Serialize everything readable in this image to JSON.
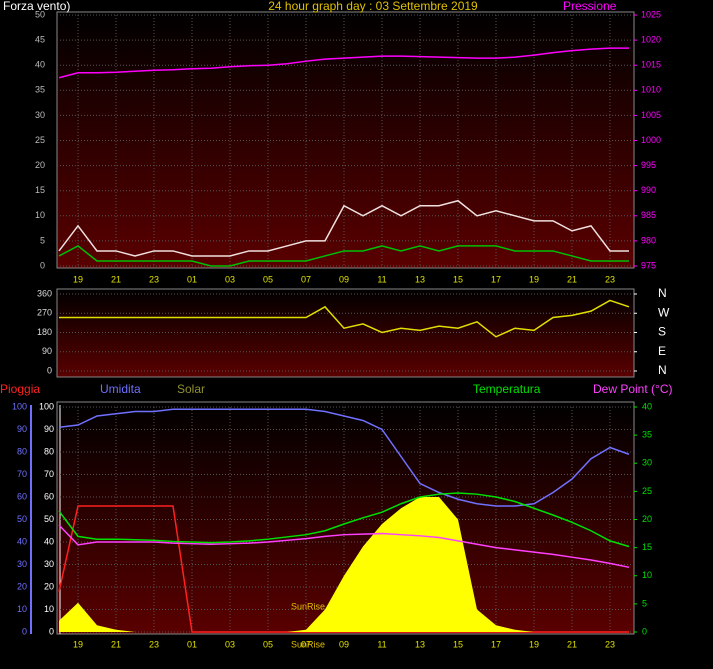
{
  "chart_data": [
    {
      "type": "line",
      "title": "24 hour graph day : 03 Settembre 2019",
      "categories": [
        null,
        "19",
        null,
        "21",
        null,
        "23",
        null,
        "01",
        null,
        "03",
        null,
        "05",
        null,
        "07",
        null,
        "09",
        null,
        "11",
        null,
        "13",
        null,
        "15",
        null,
        "17",
        null,
        "19",
        null,
        "21",
        null,
        "23",
        null
      ],
      "ylim": [
        0,
        50
      ],
      "yticks": [
        0,
        5,
        10,
        15,
        20,
        25,
        30,
        35,
        40,
        45,
        50
      ],
      "y2lim": [
        975,
        1025
      ],
      "y2ticks": [
        975,
        980,
        985,
        990,
        995,
        1000,
        1005,
        1010,
        1015,
        1020,
        1025
      ],
      "grid": true,
      "series": [
        {
          "name": "Forza vento)",
          "color": "#f0e0e0",
          "values": [
            3,
            8,
            3,
            3,
            2,
            3,
            3,
            2,
            2,
            2,
            3,
            3,
            4,
            5,
            5,
            12,
            10,
            12,
            10,
            12,
            12,
            13,
            10,
            11,
            10,
            9,
            9,
            7,
            8,
            3,
            3
          ]
        },
        {
          "color": "#00c000",
          "values": [
            2,
            4,
            1,
            1,
            1,
            1,
            1,
            1,
            0,
            0,
            1,
            1,
            1,
            1,
            2,
            3,
            3,
            4,
            3,
            4,
            3,
            4,
            4,
            4,
            3,
            3,
            3,
            2,
            1,
            1,
            1
          ]
        },
        {
          "name": "Pressione",
          "color": "#ff00ff",
          "axis": "y2",
          "values": [
            1012.5,
            1013.5,
            1013.5,
            1013.6,
            1013.8,
            1014,
            1014.1,
            1014.3,
            1014.4,
            1014.7,
            1014.9,
            1015,
            1015.3,
            1015.8,
            1016.2,
            1016.4,
            1016.6,
            1016.8,
            1016.8,
            1016.7,
            1016.6,
            1016.5,
            1016.4,
            1016.4,
            1016.6,
            1017,
            1017.5,
            1017.9,
            1018.2,
            1018.4,
            1018.4
          ]
        }
      ]
    },
    {
      "type": "line",
      "ylim": [
        0,
        360
      ],
      "yticks": [
        0,
        90,
        180,
        270,
        360
      ],
      "y2lim": [
        0,
        360
      ],
      "y2ticks": [
        {
          "value": 0,
          "label": "N"
        },
        {
          "value": 90,
          "label": "E"
        },
        {
          "value": 180,
          "label": "S"
        },
        {
          "value": 270,
          "label": "W"
        },
        {
          "value": 360,
          "label": "N"
        }
      ],
      "grid": true,
      "series": [
        {
          "color": "#e0e000",
          "values": [
            250,
            250,
            250,
            250,
            250,
            250,
            250,
            250,
            250,
            250,
            250,
            250,
            250,
            250,
            300,
            200,
            220,
            180,
            200,
            190,
            210,
            200,
            230,
            160,
            200,
            190,
            250,
            260,
            280,
            330,
            300
          ]
        }
      ]
    },
    {
      "type": "line",
      "categories": [
        null,
        "19",
        null,
        "21",
        null,
        "23",
        null,
        "01",
        null,
        "03",
        null,
        "05",
        null,
        "07",
        null,
        "09",
        null,
        "11",
        null,
        "13",
        null,
        "15",
        null,
        "17",
        null,
        "19",
        null,
        "21",
        null,
        "23",
        null
      ],
      "ylim": [
        0,
        100
      ],
      "yticks": [
        0,
        10,
        20,
        30,
        40,
        50,
        60,
        70,
        80,
        90,
        100
      ],
      "y2lim": [
        0,
        40
      ],
      "y2ticks": [
        0,
        5,
        10,
        15,
        20,
        25,
        30,
        35,
        40
      ],
      "grid": true,
      "annotations": [
        "SunRise",
        "SunRise"
      ],
      "series": [
        {
          "name": "Pioggia",
          "color": "#ff2020",
          "values": [
            18,
            56,
            56,
            56,
            56,
            56,
            56,
            0,
            0,
            0,
            0,
            0,
            0,
            0,
            0,
            0,
            0,
            0,
            0,
            0,
            0,
            0,
            0,
            0,
            0,
            0,
            0,
            0,
            0,
            0,
            0
          ]
        },
        {
          "name": "Umidita",
          "color": "#7070ff",
          "values": [
            91,
            92,
            96,
            97,
            98,
            98,
            99,
            99,
            99,
            99,
            99,
            99,
            99,
            99,
            98,
            96,
            94,
            90,
            78,
            66,
            62,
            59,
            57,
            56,
            56,
            57,
            62,
            68,
            77,
            82,
            79
          ]
        },
        {
          "name": "Solar",
          "color": "#909030",
          "area": true,
          "values": [
            5,
            13,
            3,
            1,
            0,
            0,
            0,
            0,
            0,
            0,
            0,
            0,
            0,
            1,
            10,
            25,
            38,
            48,
            55,
            60,
            60,
            50,
            10,
            3,
            1,
            0,
            0,
            0,
            0,
            0,
            0
          ]
        },
        {
          "name": "Temperatura",
          "color": "#00e000",
          "axis": "y2",
          "values": [
            21.5,
            17,
            16.5,
            16.5,
            16.4,
            16.3,
            16.1,
            16,
            15.9,
            16,
            16.2,
            16.5,
            16.9,
            17.3,
            18,
            19.2,
            20.3,
            21.3,
            22.8,
            24,
            24.5,
            24.7,
            24.5,
            24,
            23.2,
            22,
            20.8,
            19.5,
            18,
            16.2,
            15.2
          ]
        },
        {
          "name": "Dew Point (°C)",
          "color": "#ff40ff",
          "axis": "y2",
          "values": [
            19,
            15.5,
            16,
            16,
            16,
            16,
            15.8,
            15.7,
            15.6,
            15.7,
            15.8,
            16,
            16.3,
            16.6,
            17,
            17.3,
            17.4,
            17.5,
            17.3,
            17.1,
            16.8,
            16.2,
            15.6,
            15,
            14.6,
            14.2,
            13.8,
            13.3,
            12.8,
            12.2,
            11.5
          ]
        }
      ]
    }
  ]
}
